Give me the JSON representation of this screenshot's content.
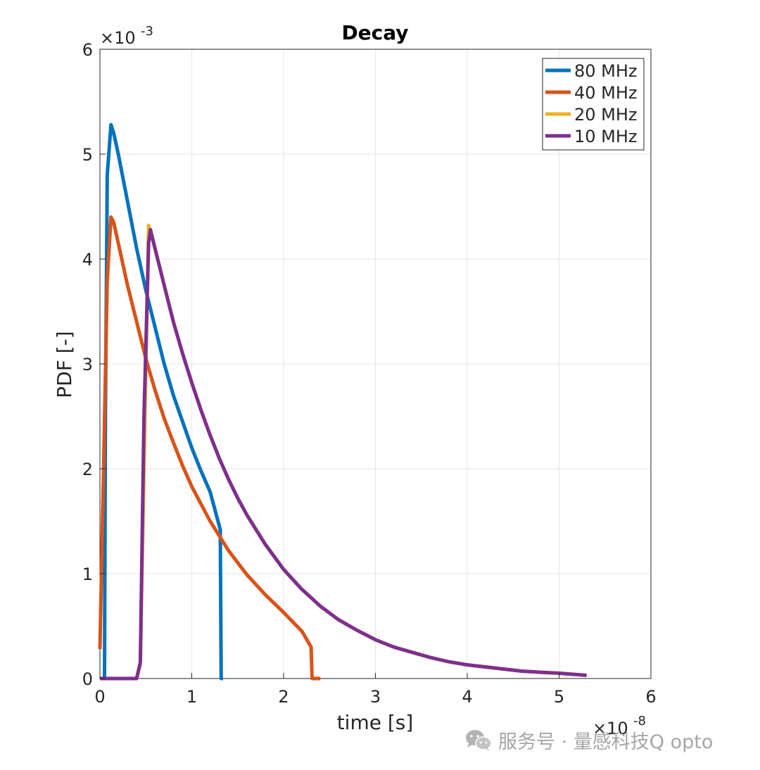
{
  "chart_data": {
    "type": "line",
    "title": "Decay",
    "xlabel": "time [s]",
    "ylabel": "PDF [-]",
    "x_multiplier": "×10",
    "x_multiplier_exp": "-8",
    "y_multiplier": "×10",
    "y_multiplier_exp": "-3",
    "xlim": [
      0,
      6
    ],
    "ylim": [
      0,
      6
    ],
    "xticks": [
      "0",
      "1",
      "2",
      "3",
      "4",
      "5",
      "6"
    ],
    "yticks": [
      "0",
      "1",
      "2",
      "3",
      "4",
      "5",
      "6"
    ],
    "grid": true,
    "legend_position": "top-right",
    "series": [
      {
        "name": "20 MHz",
        "color": "#EDB120",
        "x": [
          0,
          0.4,
          0.44,
          0.53,
          0.6,
          0.7,
          0.8,
          0.9,
          1.0,
          1.1,
          1.2,
          1.3,
          1.4,
          1.5,
          1.6,
          1.8,
          2.0,
          2.2,
          2.4,
          2.6,
          2.8,
          3.0,
          3.2,
          3.4,
          3.6,
          3.8,
          4.0,
          4.2,
          4.4,
          4.6,
          4.8,
          5.0,
          5.3
        ],
        "y": [
          0,
          0,
          0.15,
          4.32,
          4.1,
          3.75,
          3.4,
          3.1,
          2.82,
          2.56,
          2.32,
          2.1,
          1.9,
          1.72,
          1.56,
          1.28,
          1.04,
          0.85,
          0.69,
          0.56,
          0.46,
          0.37,
          0.3,
          0.25,
          0.2,
          0.16,
          0.13,
          0.11,
          0.09,
          0.07,
          0.06,
          0.05,
          0.03
        ]
      },
      {
        "name": "80 MHz",
        "color": "#0072BD",
        "x": [
          0.05,
          0.06,
          0.08,
          0.12,
          0.15,
          0.2,
          0.3,
          0.4,
          0.5,
          0.6,
          0.7,
          0.8,
          0.9,
          1.0,
          1.1,
          1.2,
          1.31,
          1.32,
          1.34
        ],
        "y": [
          0,
          2.5,
          4.8,
          5.28,
          5.2,
          5.0,
          4.55,
          4.1,
          3.7,
          3.35,
          3.0,
          2.7,
          2.45,
          2.2,
          1.98,
          1.78,
          1.42,
          0,
          0
        ]
      },
      {
        "name": "40 MHz",
        "color": "#D95319",
        "x": [
          0,
          0.04,
          0.08,
          0.12,
          0.15,
          0.2,
          0.3,
          0.4,
          0.5,
          0.6,
          0.7,
          0.8,
          0.9,
          1.0,
          1.2,
          1.4,
          1.6,
          1.8,
          2.0,
          2.2,
          2.3,
          2.31,
          2.4
        ],
        "y": [
          0.28,
          2.0,
          3.8,
          4.4,
          4.35,
          4.15,
          3.75,
          3.4,
          3.05,
          2.75,
          2.48,
          2.25,
          2.03,
          1.83,
          1.5,
          1.22,
          0.99,
          0.8,
          0.63,
          0.45,
          0.3,
          0,
          0
        ]
      },
      {
        "name": "10 MHz",
        "color": "#7E2F8E",
        "x": [
          0,
          0.4,
          0.44,
          0.48,
          0.53,
          0.55,
          0.6,
          0.7,
          0.8,
          0.9,
          1.0,
          1.1,
          1.2,
          1.3,
          1.4,
          1.5,
          1.6,
          1.8,
          2.0,
          2.2,
          2.4,
          2.6,
          2.8,
          3.0,
          3.2,
          3.4,
          3.6,
          3.8,
          4.0,
          4.2,
          4.4,
          4.6,
          4.8,
          5.0,
          5.3
        ],
        "y": [
          0,
          0,
          0.15,
          2.5,
          4.15,
          4.28,
          4.1,
          3.75,
          3.4,
          3.1,
          2.82,
          2.56,
          2.32,
          2.1,
          1.9,
          1.72,
          1.56,
          1.28,
          1.04,
          0.85,
          0.69,
          0.56,
          0.46,
          0.37,
          0.3,
          0.25,
          0.2,
          0.16,
          0.13,
          0.11,
          0.09,
          0.07,
          0.06,
          0.05,
          0.03
        ]
      }
    ],
    "legend_order": [
      "80 MHz",
      "40 MHz",
      "20 MHz",
      "10 MHz"
    ]
  },
  "watermark": {
    "icon": "wechat-icon",
    "text": "服务号 · 量感科技Q opto"
  }
}
